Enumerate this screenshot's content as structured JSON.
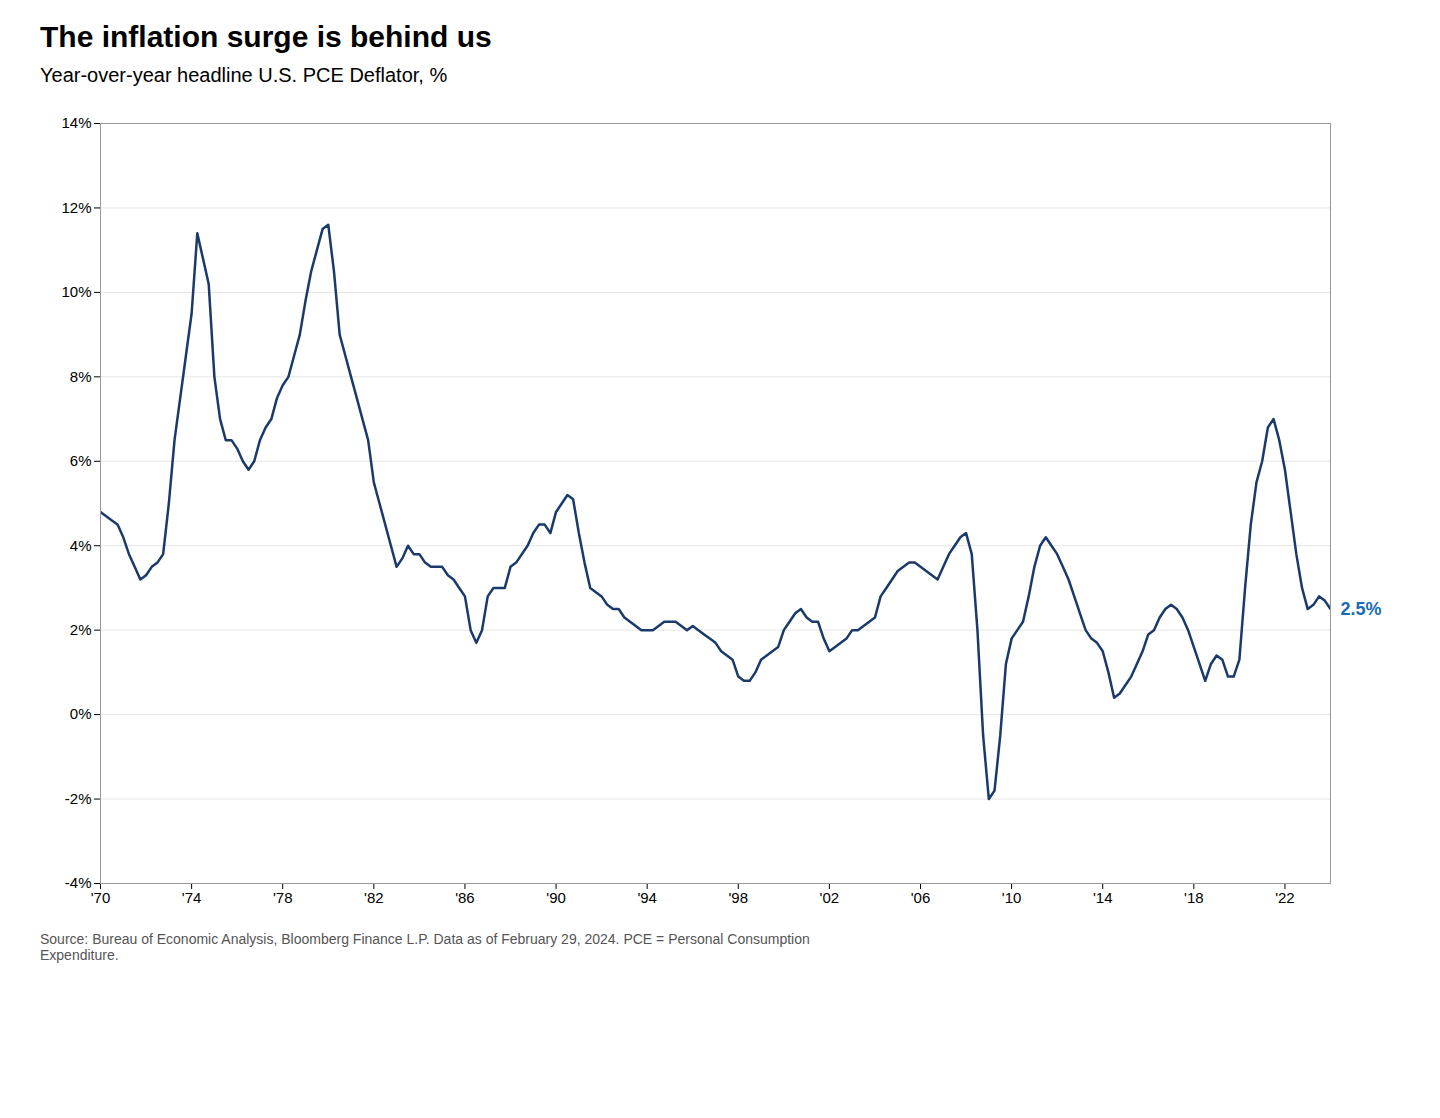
{
  "chart_data": {
    "type": "line",
    "title": "The inflation surge is behind us",
    "subtitle": "Year-over-year headline U.S. PCE Deflator, %",
    "source": "Source: Bureau of Economic Analysis, Bloomberg Finance L.P. Data as of February 29, 2024. PCE = Personal Consumption\nExpenditure.",
    "color": "#1a3a6b",
    "grid": true,
    "annotations": [
      {
        "text": "2.5%",
        "x": 2024.0,
        "y": 2.5,
        "color": "#1a6bb5"
      }
    ],
    "xlim": [
      1970,
      2024
    ],
    "xticks": [
      {
        "value": 1970,
        "label": "'70"
      },
      {
        "value": 1974,
        "label": "'74"
      },
      {
        "value": 1978,
        "label": "'78"
      },
      {
        "value": 1982,
        "label": "'82"
      },
      {
        "value": 1986,
        "label": "'86"
      },
      {
        "value": 1990,
        "label": "'90"
      },
      {
        "value": 1994,
        "label": "'94"
      },
      {
        "value": 1998,
        "label": "'98"
      },
      {
        "value": 2002,
        "label": "'02"
      },
      {
        "value": 2006,
        "label": "'06"
      },
      {
        "value": 2010,
        "label": "'10"
      },
      {
        "value": 2014,
        "label": "'14"
      },
      {
        "value": 2018,
        "label": "'18"
      },
      {
        "value": 2022,
        "label": "'22"
      }
    ],
    "ylim": [
      -4,
      14
    ],
    "yticks": [
      {
        "value": -4,
        "label": "-4%"
      },
      {
        "value": -2,
        "label": "-2%"
      },
      {
        "value": 0,
        "label": "0%"
      },
      {
        "value": 2,
        "label": "2%"
      },
      {
        "value": 4,
        "label": "4%"
      },
      {
        "value": 6,
        "label": "6%"
      },
      {
        "value": 8,
        "label": "8%"
      },
      {
        "value": 10,
        "label": "10%"
      },
      {
        "value": 12,
        "label": "12%"
      },
      {
        "value": 14,
        "label": "14%"
      }
    ],
    "x": [
      1970.0,
      1970.25,
      1970.5,
      1970.75,
      1971.0,
      1971.25,
      1971.5,
      1971.75,
      1972.0,
      1972.25,
      1972.5,
      1972.75,
      1973.0,
      1973.25,
      1973.5,
      1973.75,
      1974.0,
      1974.25,
      1974.5,
      1974.75,
      1975.0,
      1975.25,
      1975.5,
      1975.75,
      1976.0,
      1976.25,
      1976.5,
      1976.75,
      1977.0,
      1977.25,
      1977.5,
      1977.75,
      1978.0,
      1978.25,
      1978.5,
      1978.75,
      1979.0,
      1979.25,
      1979.5,
      1979.75,
      1980.0,
      1980.25,
      1980.5,
      1980.75,
      1981.0,
      1981.25,
      1981.5,
      1981.75,
      1982.0,
      1982.25,
      1982.5,
      1982.75,
      1983.0,
      1983.25,
      1983.5,
      1983.75,
      1984.0,
      1984.25,
      1984.5,
      1984.75,
      1985.0,
      1985.25,
      1985.5,
      1985.75,
      1986.0,
      1986.25,
      1986.5,
      1986.75,
      1987.0,
      1987.25,
      1987.5,
      1987.75,
      1988.0,
      1988.25,
      1988.5,
      1988.75,
      1989.0,
      1989.25,
      1989.5,
      1989.75,
      1990.0,
      1990.25,
      1990.5,
      1990.75,
      1991.0,
      1991.25,
      1991.5,
      1991.75,
      1992.0,
      1992.25,
      1992.5,
      1992.75,
      1993.0,
      1993.25,
      1993.5,
      1993.75,
      1994.0,
      1994.25,
      1994.5,
      1994.75,
      1995.0,
      1995.25,
      1995.5,
      1995.75,
      1996.0,
      1996.25,
      1996.5,
      1996.75,
      1997.0,
      1997.25,
      1997.5,
      1997.75,
      1998.0,
      1998.25,
      1998.5,
      1998.75,
      1999.0,
      1999.25,
      1999.5,
      1999.75,
      2000.0,
      2000.25,
      2000.5,
      2000.75,
      2001.0,
      2001.25,
      2001.5,
      2001.75,
      2002.0,
      2002.25,
      2002.5,
      2002.75,
      2003.0,
      2003.25,
      2003.5,
      2003.75,
      2004.0,
      2004.25,
      2004.5,
      2004.75,
      2005.0,
      2005.25,
      2005.5,
      2005.75,
      2006.0,
      2006.25,
      2006.5,
      2006.75,
      2007.0,
      2007.25,
      2007.5,
      2007.75,
      2008.0,
      2008.25,
      2008.5,
      2008.75,
      2009.0,
      2009.25,
      2009.5,
      2009.75,
      2010.0,
      2010.25,
      2010.5,
      2010.75,
      2011.0,
      2011.25,
      2011.5,
      2011.75,
      2012.0,
      2012.25,
      2012.5,
      2012.75,
      2013.0,
      2013.25,
      2013.5,
      2013.75,
      2014.0,
      2014.25,
      2014.5,
      2014.75,
      2015.0,
      2015.25,
      2015.5,
      2015.75,
      2016.0,
      2016.25,
      2016.5,
      2016.75,
      2017.0,
      2017.25,
      2017.5,
      2017.75,
      2018.0,
      2018.25,
      2018.5,
      2018.75,
      2019.0,
      2019.25,
      2019.5,
      2019.75,
      2020.0,
      2020.25,
      2020.5,
      2020.75,
      2021.0,
      2021.25,
      2021.5,
      2021.75,
      2022.0,
      2022.25,
      2022.5,
      2022.75,
      2023.0,
      2023.25,
      2023.5,
      2023.75,
      2024.0
    ],
    "values": [
      4.8,
      4.7,
      4.6,
      4.5,
      4.2,
      3.8,
      3.5,
      3.2,
      3.3,
      3.5,
      3.6,
      3.8,
      5.0,
      6.5,
      7.5,
      8.5,
      9.5,
      11.4,
      10.8,
      10.2,
      8.0,
      7.0,
      6.5,
      6.5,
      6.3,
      6.0,
      5.8,
      6.0,
      6.5,
      6.8,
      7.0,
      7.5,
      7.8,
      8.0,
      8.5,
      9.0,
      9.8,
      10.5,
      11.0,
      11.5,
      11.6,
      10.5,
      9.0,
      8.5,
      8.0,
      7.5,
      7.0,
      6.5,
      5.5,
      5.0,
      4.5,
      4.0,
      3.5,
      3.7,
      4.0,
      3.8,
      3.8,
      3.6,
      3.5,
      3.5,
      3.5,
      3.3,
      3.2,
      3.0,
      2.8,
      2.0,
      1.7,
      2.0,
      2.8,
      3.0,
      3.0,
      3.0,
      3.5,
      3.6,
      3.8,
      4.0,
      4.3,
      4.5,
      4.5,
      4.3,
      4.8,
      5.0,
      5.2,
      5.1,
      4.3,
      3.6,
      3.0,
      2.9,
      2.8,
      2.6,
      2.5,
      2.5,
      2.3,
      2.2,
      2.1,
      2.0,
      2.0,
      2.0,
      2.1,
      2.2,
      2.2,
      2.2,
      2.1,
      2.0,
      2.1,
      2.0,
      1.9,
      1.8,
      1.7,
      1.5,
      1.4,
      1.3,
      0.9,
      0.8,
      0.8,
      1.0,
      1.3,
      1.4,
      1.5,
      1.6,
      2.0,
      2.2,
      2.4,
      2.5,
      2.3,
      2.2,
      2.2,
      1.8,
      1.5,
      1.6,
      1.7,
      1.8,
      2.0,
      2.0,
      2.1,
      2.2,
      2.3,
      2.8,
      3.0,
      3.2,
      3.4,
      3.5,
      3.6,
      3.6,
      3.5,
      3.4,
      3.3,
      3.2,
      3.5,
      3.8,
      4.0,
      4.2,
      4.3,
      3.8,
      2.0,
      -0.5,
      -2.0,
      -1.8,
      -0.5,
      1.2,
      1.8,
      2.0,
      2.2,
      2.8,
      3.5,
      4.0,
      4.2,
      4.0,
      3.8,
      3.5,
      3.2,
      2.8,
      2.4,
      2.0,
      1.8,
      1.7,
      1.5,
      1.0,
      0.4,
      0.5,
      0.7,
      0.9,
      1.2,
      1.5,
      1.9,
      2.0,
      2.3,
      2.5,
      2.6,
      2.5,
      2.3,
      2.0,
      1.6,
      1.2,
      0.8,
      1.2,
      1.4,
      1.3,
      0.9,
      0.9,
      1.3,
      3.0,
      4.5,
      5.5,
      6.0,
      6.8,
      7.0,
      6.5,
      5.8,
      4.8,
      3.8,
      3.0,
      2.5,
      2.6,
      2.8,
      2.7,
      2.5
    ]
  }
}
